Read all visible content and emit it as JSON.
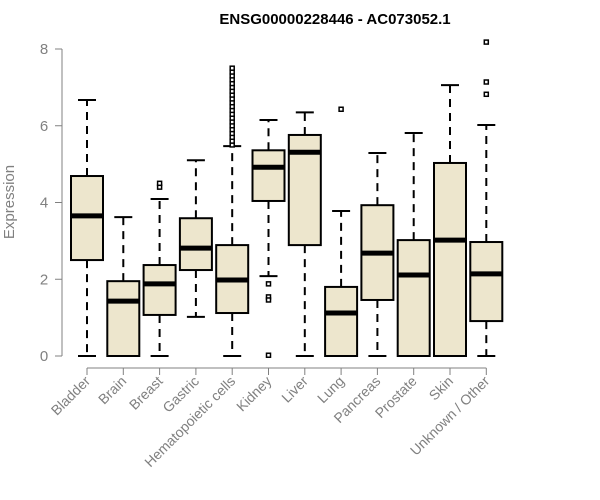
{
  "chart_data": {
    "type": "box",
    "title": "ENSG00000228446 - AC073052.1",
    "xlabel": "",
    "ylabel": "Expression",
    "ylim": [
      0,
      8
    ],
    "yticks": [
      0,
      2,
      4,
      6,
      8
    ],
    "box_fill": "#ede6cd",
    "categories": [
      "Bladder",
      "Brain",
      "Breast",
      "Gastric",
      "Hematopoietic cells",
      "Kidney",
      "Liver",
      "Lung",
      "Pancreas",
      "Prostate",
      "Skin",
      "Unknown / Other"
    ],
    "boxes": [
      {
        "min": 0,
        "q1": 2.5,
        "median": 3.65,
        "q3": 4.69,
        "max": 6.67,
        "outliers": []
      },
      {
        "min": 0,
        "q1": 0,
        "median": 1.43,
        "q3": 1.95,
        "max": 3.62,
        "outliers": []
      },
      {
        "min": 0,
        "q1": 1.07,
        "median": 1.88,
        "q3": 2.37,
        "max": 4.09,
        "outliers": [
          4.4,
          4.5
        ]
      },
      {
        "min": 1.02,
        "q1": 2.24,
        "median": 2.81,
        "q3": 3.59,
        "max": 5.1,
        "outliers": []
      },
      {
        "min": 0,
        "q1": 1.12,
        "median": 1.98,
        "q3": 2.89,
        "max": 5.47,
        "outliers": [
          5.5,
          5.6,
          5.7,
          5.8,
          5.9,
          6.0,
          6.1,
          6.2,
          6.3,
          6.4,
          6.5,
          6.6,
          6.7,
          6.8,
          6.9,
          7.0,
          7.1,
          7.2,
          7.3,
          7.4,
          7.5
        ]
      },
      {
        "min": 2.08,
        "q1": 4.04,
        "median": 4.92,
        "q3": 5.36,
        "max": 6.15,
        "outliers": [
          1.88,
          1.54,
          1.46,
          0.02
        ]
      },
      {
        "min": 0,
        "q1": 2.89,
        "median": 5.31,
        "q3": 5.76,
        "max": 6.35,
        "outliers": []
      },
      {
        "min": 0,
        "q1": 0,
        "median": 1.12,
        "q3": 1.8,
        "max": 3.78,
        "outliers": [
          6.43
        ]
      },
      {
        "min": 0,
        "q1": 1.46,
        "median": 2.68,
        "q3": 3.93,
        "max": 5.29,
        "outliers": []
      },
      {
        "min": 0,
        "q1": 0,
        "median": 2.11,
        "q3": 3.02,
        "max": 5.81,
        "outliers": []
      },
      {
        "min": 0,
        "q1": 0,
        "median": 3.02,
        "q3": 5.03,
        "max": 7.06,
        "outliers": []
      },
      {
        "min": 0,
        "q1": 0.91,
        "median": 2.14,
        "q3": 2.97,
        "max": 6.02,
        "outliers": [
          6.82,
          7.14,
          8.18
        ]
      }
    ]
  }
}
